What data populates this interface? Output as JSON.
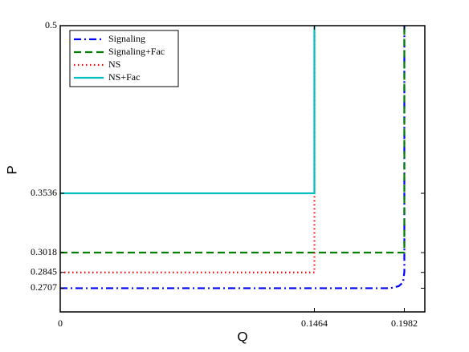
{
  "chart_data": {
    "type": "line",
    "x_label": "Q",
    "y_label": "P",
    "xlim": [
      0,
      0.21
    ],
    "ylim": [
      0.25,
      0.5
    ],
    "xticks": [
      0,
      0.1464,
      0.1982
    ],
    "yticks": [
      0.2707,
      0.2845,
      0.3018,
      0.3536,
      0.5
    ],
    "grid": false,
    "legend_position": "upper-left",
    "series": [
      {
        "name": "Signaling",
        "color": "#0000ff",
        "style": "dashdot",
        "x": [
          0,
          0.19,
          0.195,
          0.1975,
          0.1982,
          0.1982
        ],
        "values": [
          0.2707,
          0.2707,
          0.2725,
          0.276,
          0.285,
          0.5
        ]
      },
      {
        "name": "Signaling+Fac",
        "color": "#007f00",
        "style": "dashed",
        "x": [
          0,
          0.1982,
          0.1982
        ],
        "values": [
          0.3018,
          0.3018,
          0.5
        ]
      },
      {
        "name": "NS",
        "color": "#ff0000",
        "style": "dotted",
        "x": [
          0,
          0.1464,
          0.1464
        ],
        "values": [
          0.2845,
          0.2845,
          0.5
        ]
      },
      {
        "name": "NS+Fac",
        "color": "#00bfbf",
        "style": "solid",
        "x": [
          0,
          0.1464,
          0.1464
        ],
        "values": [
          0.3536,
          0.3536,
          0.5
        ]
      }
    ]
  }
}
